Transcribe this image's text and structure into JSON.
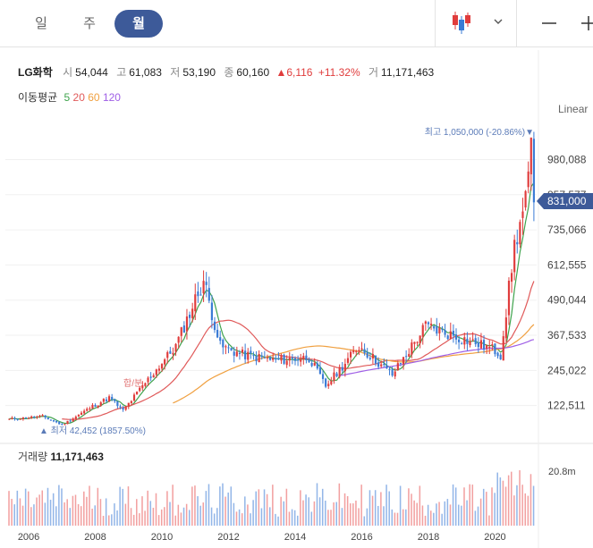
{
  "toolbar": {
    "tabs": [
      "일",
      "주",
      "월"
    ],
    "active_tab": "월"
  },
  "stock": {
    "name": "LG화학",
    "open_label": "시",
    "open": "54,044",
    "high_label": "고",
    "high": "61,083",
    "low_label": "저",
    "low": "53,190",
    "close_label": "종",
    "close": "60,160",
    "change": "▲6,116",
    "change_pct": "+11.32%",
    "volume_label": "거",
    "volume": "11,171,463"
  },
  "moving_average": {
    "label": "이동평균",
    "periods": [
      "5",
      "20",
      "60",
      "120"
    ],
    "colors": [
      "#3fa34d",
      "#e05a5a",
      "#f0a040",
      "#9f5fe6"
    ]
  },
  "price_panel": {
    "scale_label": "Linear",
    "max_marker": "최고 1,050,000 (-20.86%)▼",
    "min_marker": "▲ 최저 42,452 (1857.50%)",
    "split_marker": "합/분",
    "current_price": "831,000",
    "y_ticks": [
      "980,088",
      "857,577",
      "735,066",
      "612,555",
      "490,044",
      "367,533",
      "245,022",
      "122,511"
    ]
  },
  "volume_panel": {
    "label": "거래량",
    "value": "11,171,463",
    "y_tick": "20.8m"
  },
  "colors": {
    "up": "#e03c3c",
    "down": "#3a7bd5",
    "accent": "#3d5a99"
  },
  "chart_data": {
    "type": "candlestick",
    "interval": "monthly",
    "x_ticks": [
      "2006",
      "2008",
      "2010",
      "2012",
      "2014",
      "2016",
      "2018",
      "2020"
    ],
    "ylim": [
      0,
      1100000
    ],
    "approx_close_series": [
      {
        "date": "2005-06",
        "close": 75000
      },
      {
        "date": "2006-06",
        "close": 85000
      },
      {
        "date": "2007-01",
        "close": 55000
      },
      {
        "date": "2007-12",
        "close": 120000
      },
      {
        "date": "2008-06",
        "close": 150000
      },
      {
        "date": "2008-11",
        "close": 105000
      },
      {
        "date": "2009-06",
        "close": 190000
      },
      {
        "date": "2010-06",
        "close": 330000
      },
      {
        "date": "2011-04",
        "close": 560000
      },
      {
        "date": "2011-10",
        "close": 330000
      },
      {
        "date": "2012-06",
        "close": 300000
      },
      {
        "date": "2013-06",
        "close": 280000
      },
      {
        "date": "2014-06",
        "close": 290000
      },
      {
        "date": "2014-12",
        "close": 190000
      },
      {
        "date": "2015-12",
        "close": 330000
      },
      {
        "date": "2016-12",
        "close": 230000
      },
      {
        "date": "2017-12",
        "close": 400000
      },
      {
        "date": "2018-12",
        "close": 360000
      },
      {
        "date": "2019-12",
        "close": 320000
      },
      {
        "date": "2020-03",
        "close": 300000
      },
      {
        "date": "2020-08",
        "close": 680000
      },
      {
        "date": "2020-12",
        "close": 830000
      },
      {
        "date": "2021-02",
        "close": 1000000
      },
      {
        "date": "2021-03",
        "close": 831000
      }
    ],
    "max": {
      "value": 1050000,
      "pct_from_current": -20.86
    },
    "min": {
      "value": 42452,
      "pct_to_current": 1857.5
    },
    "volume": {
      "last": 11171463,
      "axis_tick": "20.8m"
    }
  }
}
